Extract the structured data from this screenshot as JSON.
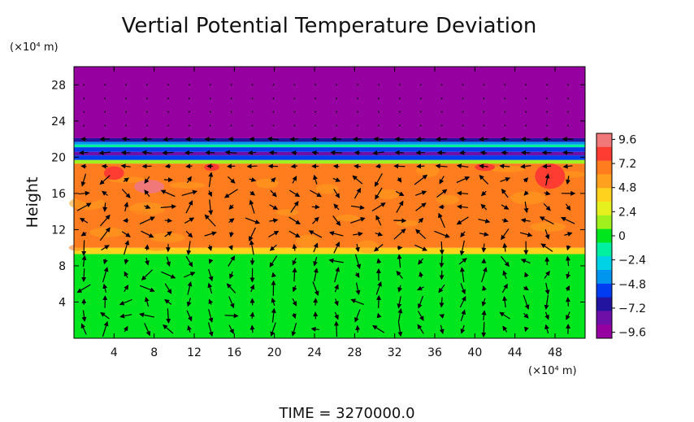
{
  "chart_data": {
    "type": "heatmap",
    "title": "Vertial Potential Temperature Deviation",
    "ylabel": "Height",
    "y_unit": "(×10⁴ m)",
    "x_unit": "(×10⁴ m)",
    "footer": "TIME = 3270000.0",
    "xlim": [
      0,
      51
    ],
    "ylim": [
      0,
      30
    ],
    "x_ticks": [
      4,
      8,
      12,
      16,
      20,
      24,
      28,
      32,
      36,
      40,
      44,
      48
    ],
    "y_ticks": [
      4,
      8,
      12,
      16,
      20,
      24,
      28
    ],
    "colorbar": {
      "range": [
        -10.2,
        10.2
      ],
      "tick_values": [
        9.6,
        7.2,
        4.8,
        2.4,
        0,
        -2.4,
        -4.8,
        -7.2,
        -9.6
      ],
      "tick_labels": [
        "9.6",
        "7.2",
        "4.8",
        "2.4",
        "0",
        "−2.4",
        "−4.8",
        "−7.2",
        "−9.6"
      ],
      "colors": [
        "#f07878",
        "#ff3c32",
        "#ff7d1e",
        "#ffa01e",
        "#ffd21e",
        "#e6f01e",
        "#a0f01e",
        "#00e61e",
        "#00f0a0",
        "#00d2e6",
        "#0096f0",
        "#003cf0",
        "#2314a0",
        "#6e10a8",
        "#9600a0"
      ]
    },
    "layers": [
      {
        "y_from": 0,
        "y_to": 9.3,
        "value": 0.5
      },
      {
        "y_from": 9.3,
        "y_to": 10.0,
        "value": 3.5
      },
      {
        "y_from": 10.0,
        "y_to": 19.3,
        "value": 6.2
      },
      {
        "y_from": 19.3,
        "y_to": 19.7,
        "value": 2.0
      },
      {
        "y_from": 19.7,
        "y_to": 20.2,
        "value": -6.0
      },
      {
        "y_from": 20.2,
        "y_to": 20.6,
        "value": -8.5
      },
      {
        "y_from": 20.6,
        "y_to": 21.1,
        "value": -5.2
      },
      {
        "y_from": 21.1,
        "y_to": 21.4,
        "value": -2.0
      },
      {
        "y_from": 21.4,
        "y_to": 21.7,
        "value": -4.5
      },
      {
        "y_from": 21.7,
        "y_to": 22.1,
        "value": -7.0
      },
      {
        "y_from": 22.1,
        "y_to": 30,
        "value": -9.9
      }
    ],
    "patches": [
      {
        "x": [
          6,
          9
        ],
        "y": [
          16,
          17.5
        ],
        "value": 9.0
      },
      {
        "x": [
          13,
          14.5
        ],
        "y": [
          18.5,
          19.3
        ],
        "value": 7.6
      },
      {
        "x": [
          40,
          42
        ],
        "y": [
          18.5,
          19.3
        ],
        "value": 8.0
      },
      {
        "x": [
          46,
          49
        ],
        "y": [
          16.5,
          19.3
        ],
        "value": 7.6
      },
      {
        "x": [
          0,
          3
        ],
        "y": [
          15,
          17
        ],
        "value": 7.4
      },
      {
        "x": [
          3,
          5
        ],
        "y": [
          17.5,
          19.0
        ],
        "value": 8.1
      }
    ],
    "vector_field": "velocity arrows overlaid on grid"
  }
}
